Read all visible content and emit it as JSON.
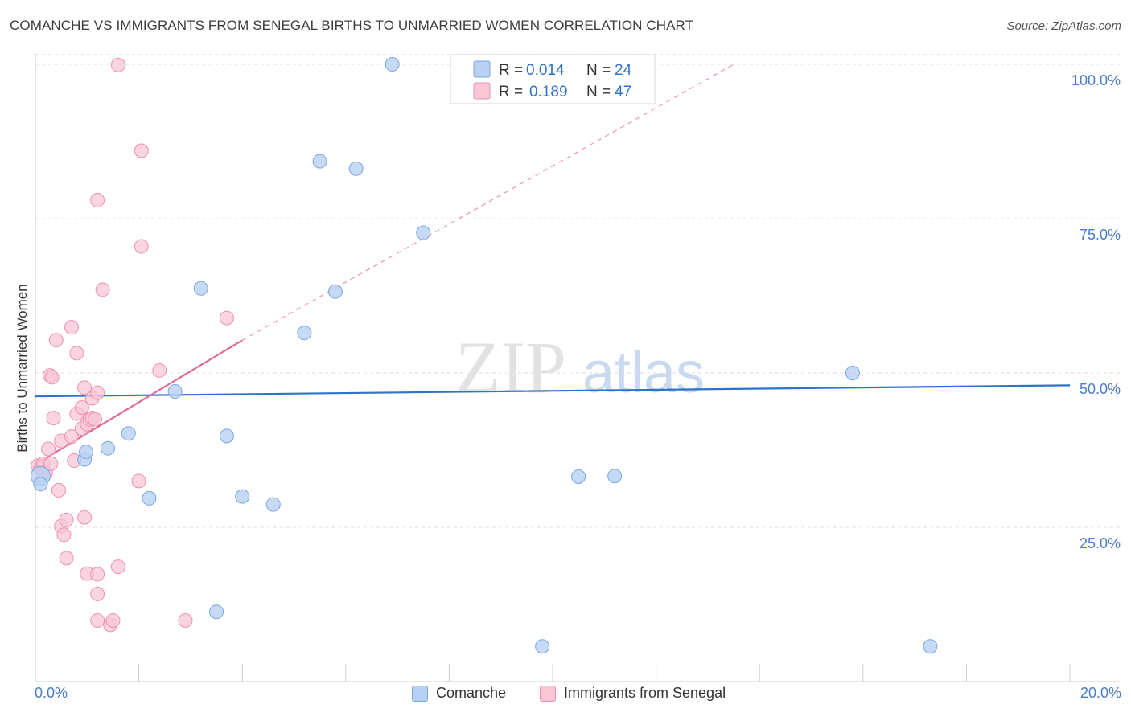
{
  "title": "COMANCHE VS IMMIGRANTS FROM SENEGAL BIRTHS TO UNMARRIED WOMEN CORRELATION CHART",
  "source": "Source: ZipAtlas.com",
  "watermark": {
    "zip": "ZIP",
    "atlas": "atlas"
  },
  "colors": {
    "comanche_fill": "#b8d1f3",
    "comanche_stroke": "#7aa7e0",
    "comanche_line": "#2f72c9",
    "senegal_fill": "#f8c6d5",
    "senegal_stroke": "#ec92ae",
    "senegal_line": "#e0699a",
    "axis_text": "#4a7cc7",
    "grid": "#dddddd"
  },
  "legend": {
    "entries": [
      {
        "r_label": "R =",
        "r_value": "0.014",
        "n_label": "N =",
        "n_value": "24"
      },
      {
        "r_label": "R =",
        "r_value": "0.189",
        "n_label": "N =",
        "n_value": "47"
      }
    ]
  },
  "bottom_legend": {
    "series1": "Comanche",
    "series2": "Immigrants from Senegal"
  },
  "chart_data": {
    "type": "scatter",
    "title": "COMANCHE VS IMMIGRANTS FROM SENEGAL BIRTHS TO UNMARRIED WOMEN CORRELATION CHART",
    "xlabel": "",
    "ylabel": "Births to Unmarried Women",
    "xlim": [
      0,
      20
    ],
    "ylim": [
      0,
      104
    ],
    "x_tick_labels": [
      "0.0%",
      "20.0%"
    ],
    "y_ticks": [
      25,
      50,
      75,
      100
    ],
    "y_tick_labels": [
      "25.0%",
      "50.0%",
      "75.0%",
      "100.0%"
    ],
    "grid": true,
    "series": [
      {
        "name": "Comanche",
        "r": 0.014,
        "n": 24,
        "trend": {
          "x": [
            0,
            20
          ],
          "y": [
            46.2,
            48.0
          ],
          "style": "solid"
        },
        "points": [
          {
            "x": 0.1,
            "y": 33.3
          },
          {
            "x": 0.1,
            "y": 32.0
          },
          {
            "x": 0.95,
            "y": 36.0
          },
          {
            "x": 0.98,
            "y": 37.2
          },
          {
            "x": 1.4,
            "y": 37.8
          },
          {
            "x": 1.8,
            "y": 40.2
          },
          {
            "x": 2.2,
            "y": 29.7
          },
          {
            "x": 2.7,
            "y": 47.0
          },
          {
            "x": 3.2,
            "y": 63.7
          },
          {
            "x": 3.5,
            "y": 11.3
          },
          {
            "x": 3.7,
            "y": 39.8
          },
          {
            "x": 4.0,
            "y": 30.0
          },
          {
            "x": 4.6,
            "y": 28.7
          },
          {
            "x": 5.2,
            "y": 56.5
          },
          {
            "x": 5.5,
            "y": 84.3
          },
          {
            "x": 5.8,
            "y": 63.2
          },
          {
            "x": 6.2,
            "y": 83.1
          },
          {
            "x": 6.9,
            "y": 100.0
          },
          {
            "x": 7.5,
            "y": 72.7
          },
          {
            "x": 9.8,
            "y": 5.7
          },
          {
            "x": 10.5,
            "y": 33.2
          },
          {
            "x": 11.2,
            "y": 33.3
          },
          {
            "x": 15.8,
            "y": 50.0
          },
          {
            "x": 17.3,
            "y": 5.7
          }
        ]
      },
      {
        "name": "Immigrants from Senegal",
        "r": 0.189,
        "n": 47,
        "trend": {
          "x": [
            0,
            4.0
          ],
          "y": [
            35.2,
            55.3
          ],
          "style": "solid",
          "extended_x": [
            4.0,
            13.5
          ],
          "extended_y": [
            55.3,
            100.0
          ]
        },
        "points": [
          {
            "x": 0.05,
            "y": 35.0
          },
          {
            "x": 0.1,
            "y": 34.5
          },
          {
            "x": 0.15,
            "y": 35.3
          },
          {
            "x": 0.2,
            "y": 33.8
          },
          {
            "x": 0.25,
            "y": 37.7
          },
          {
            "x": 0.35,
            "y": 42.7
          },
          {
            "x": 0.3,
            "y": 35.3
          },
          {
            "x": 0.28,
            "y": 49.6
          },
          {
            "x": 0.32,
            "y": 49.3
          },
          {
            "x": 0.4,
            "y": 55.3
          },
          {
            "x": 0.45,
            "y": 31.0
          },
          {
            "x": 0.5,
            "y": 25.2
          },
          {
            "x": 0.55,
            "y": 23.8
          },
          {
            "x": 0.5,
            "y": 39.0
          },
          {
            "x": 0.6,
            "y": 26.2
          },
          {
            "x": 0.6,
            "y": 20.0
          },
          {
            "x": 0.7,
            "y": 57.4
          },
          {
            "x": 0.7,
            "y": 39.7
          },
          {
            "x": 0.75,
            "y": 35.8
          },
          {
            "x": 0.8,
            "y": 43.4
          },
          {
            "x": 0.8,
            "y": 53.2
          },
          {
            "x": 0.9,
            "y": 44.4
          },
          {
            "x": 0.9,
            "y": 41.0
          },
          {
            "x": 0.95,
            "y": 47.6
          },
          {
            "x": 0.95,
            "y": 26.6
          },
          {
            "x": 1.0,
            "y": 41.7
          },
          {
            "x": 1.05,
            "y": 42.5
          },
          {
            "x": 1.1,
            "y": 42.7
          },
          {
            "x": 1.15,
            "y": 42.5
          },
          {
            "x": 1.2,
            "y": 9.9
          },
          {
            "x": 1.0,
            "y": 17.5
          },
          {
            "x": 1.1,
            "y": 45.9
          },
          {
            "x": 1.2,
            "y": 14.2
          },
          {
            "x": 1.3,
            "y": 63.5
          },
          {
            "x": 1.2,
            "y": 78.0
          },
          {
            "x": 1.2,
            "y": 17.4
          },
          {
            "x": 1.45,
            "y": 9.2
          },
          {
            "x": 1.5,
            "y": 9.9
          },
          {
            "x": 1.2,
            "y": 46.8
          },
          {
            "x": 1.6,
            "y": 99.9
          },
          {
            "x": 1.6,
            "y": 18.6
          },
          {
            "x": 2.0,
            "y": 32.5
          },
          {
            "x": 2.05,
            "y": 70.5
          },
          {
            "x": 2.05,
            "y": 86.0
          },
          {
            "x": 2.4,
            "y": 50.4
          },
          {
            "x": 2.9,
            "y": 9.9
          },
          {
            "x": 3.7,
            "y": 58.9
          }
        ]
      }
    ]
  }
}
